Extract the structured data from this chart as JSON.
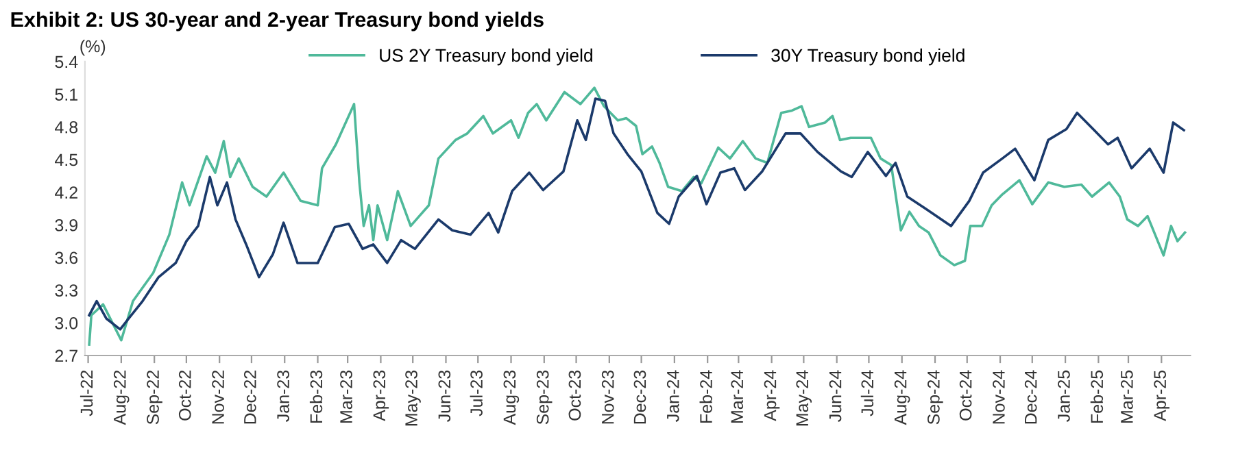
{
  "chart_data": {
    "type": "line",
    "title": "Exhibit 2: US 30-year and 2-year Treasury bond yields",
    "ylabel": "(%)",
    "xlim": [
      "2022-06-28",
      "2025-04-28"
    ],
    "ylim": [
      2.7,
      5.4
    ],
    "yticks": [
      2.7,
      {
        "value": 3,
        "label": "3.0"
      },
      3.3,
      3.6,
      3.9,
      4.2,
      4.5,
      4.8,
      5.1,
      5.4
    ],
    "xticks": [
      {
        "value": "2022-07-01",
        "label": "Jul-22"
      },
      {
        "value": "2022-08-01",
        "label": "Aug-22"
      },
      {
        "value": "2022-09-01",
        "label": "Sep-22"
      },
      {
        "value": "2022-10-01",
        "label": "Oct-22"
      },
      {
        "value": "2022-11-01",
        "label": "Nov-22"
      },
      {
        "value": "2022-12-01",
        "label": "Dec-22"
      },
      {
        "value": "2023-01-01",
        "label": "Jan-23"
      },
      {
        "value": "2023-02-01",
        "label": "Feb-23"
      },
      {
        "value": "2023-03-01",
        "label": "Mar-23"
      },
      {
        "value": "2023-04-01",
        "label": "Apr-23"
      },
      {
        "value": "2023-05-01",
        "label": "May-23"
      },
      {
        "value": "2023-06-01",
        "label": "Jun-23"
      },
      {
        "value": "2023-07-01",
        "label": "Jul-23"
      },
      {
        "value": "2023-08-01",
        "label": "Aug-23"
      },
      {
        "value": "2023-09-01",
        "label": "Sep-23"
      },
      {
        "value": "2023-10-01",
        "label": "Oct-23"
      },
      {
        "value": "2023-11-01",
        "label": "Nov-23"
      },
      {
        "value": "2023-12-01",
        "label": "Dec-23"
      },
      {
        "value": "2024-01-01",
        "label": "Jan-24"
      },
      {
        "value": "2024-02-01",
        "label": "Feb-24"
      },
      {
        "value": "2024-03-01",
        "label": "Mar-24"
      },
      {
        "value": "2024-04-01",
        "label": "Apr-24"
      },
      {
        "value": "2024-05-01",
        "label": "May-24"
      },
      {
        "value": "2024-06-01",
        "label": "Jun-24"
      },
      {
        "value": "2024-07-01",
        "label": "Jul-24"
      },
      {
        "value": "2024-08-01",
        "label": "Aug-24"
      },
      {
        "value": "2024-09-01",
        "label": "Sep-24"
      },
      {
        "value": "2024-10-01",
        "label": "Oct-24"
      },
      {
        "value": "2024-11-01",
        "label": "Nov-24"
      },
      {
        "value": "2024-12-01",
        "label": "Dec-24"
      },
      {
        "value": "2025-01-01",
        "label": "Jan-25"
      },
      {
        "value": "2025-02-01",
        "label": "Feb-25"
      },
      {
        "value": "2025-03-01",
        "label": "Mar-25"
      },
      {
        "value": "2025-04-01",
        "label": "Apr-25"
      }
    ],
    "legend": "top",
    "grid": false,
    "series": [
      {
        "name": "US 2Y Treasury bond yield",
        "color": "#4fb99a",
        "x": [
          "2022-07-02",
          "2022-07-04",
          "2022-07-15",
          "2022-08-01",
          "2022-08-12",
          "2022-08-31",
          "2022-09-15",
          "2022-09-27",
          "2022-10-04",
          "2022-10-20",
          "2022-10-28",
          "2022-11-05",
          "2022-11-11",
          "2022-11-19",
          "2022-12-02",
          "2022-12-15",
          "2022-12-31",
          "2023-01-16",
          "2023-02-01",
          "2023-02-05",
          "2023-02-18",
          "2023-03-07",
          "2023-03-12",
          "2023-03-16",
          "2023-03-21",
          "2023-03-25",
          "2023-03-29",
          "2023-04-07",
          "2023-04-17",
          "2023-04-29",
          "2023-05-07",
          "2023-05-16",
          "2023-05-25",
          "2023-06-10",
          "2023-06-21",
          "2023-07-06",
          "2023-07-15",
          "2023-08-01",
          "2023-08-08",
          "2023-08-17",
          "2023-08-25",
          "2023-09-03",
          "2023-09-20",
          "2023-10-05",
          "2023-10-18",
          "2023-10-27",
          "2023-11-09",
          "2023-11-17",
          "2023-11-26",
          "2023-12-02",
          "2023-12-11",
          "2023-12-18",
          "2023-12-26",
          "2024-01-08",
          "2024-01-19",
          "2024-01-26",
          "2024-02-11",
          "2024-02-22",
          "2024-03-05",
          "2024-03-17",
          "2024-03-28",
          "2024-04-10",
          "2024-04-20",
          "2024-04-29",
          "2024-05-06",
          "2024-05-21",
          "2024-05-28",
          "2024-06-04",
          "2024-06-14",
          "2024-07-03",
          "2024-07-12",
          "2024-07-22",
          "2024-07-31",
          "2024-08-08",
          "2024-08-17",
          "2024-08-26",
          "2024-09-06",
          "2024-09-19",
          "2024-09-29",
          "2024-10-04",
          "2024-10-15",
          "2024-10-24",
          "2024-11-03",
          "2024-11-19",
          "2024-12-01",
          "2024-12-16",
          "2024-12-31",
          "2025-01-16",
          "2025-01-26",
          "2025-02-11",
          "2025-02-21",
          "2025-02-28",
          "2025-03-10",
          "2025-03-19",
          "2025-04-03",
          "2025-04-10",
          "2025-04-16",
          "2025-04-23"
        ],
        "values": [
          2.8,
          3.07,
          3.17,
          2.84,
          3.2,
          3.46,
          3.81,
          4.29,
          4.08,
          4.53,
          4.38,
          4.67,
          4.34,
          4.51,
          4.25,
          4.16,
          4.38,
          4.12,
          4.08,
          4.42,
          4.64,
          5.01,
          4.29,
          3.89,
          4.08,
          3.76,
          4.08,
          3.76,
          4.21,
          3.89,
          3.98,
          4.08,
          4.51,
          4.68,
          4.74,
          4.9,
          4.74,
          4.86,
          4.7,
          4.93,
          5.01,
          4.86,
          5.12,
          5.01,
          5.16,
          4.99,
          4.86,
          4.88,
          4.81,
          4.55,
          4.62,
          4.47,
          4.25,
          4.21,
          4.34,
          4.28,
          4.61,
          4.51,
          4.67,
          4.51,
          4.47,
          4.93,
          4.95,
          4.99,
          4.8,
          4.84,
          4.9,
          4.68,
          4.7,
          4.7,
          4.51,
          4.45,
          3.85,
          4.02,
          3.89,
          3.83,
          3.62,
          3.53,
          3.57,
          3.89,
          3.89,
          4.08,
          4.18,
          4.31,
          4.09,
          4.29,
          4.25,
          4.27,
          4.16,
          4.29,
          4.16,
          3.95,
          3.89,
          3.98,
          3.62,
          3.89,
          3.75,
          3.83
        ]
      },
      {
        "name": "30Y Treasury bond yield",
        "color": "#1b3a6b",
        "x": [
          "2022-07-02",
          "2022-07-09",
          "2022-07-18",
          "2022-07-31",
          "2022-08-08",
          "2022-08-21",
          "2022-09-05",
          "2022-09-21",
          "2022-10-01",
          "2022-10-12",
          "2022-10-23",
          "2022-10-30",
          "2022-11-08",
          "2022-11-16",
          "2022-11-26",
          "2022-12-08",
          "2022-12-21",
          "2022-12-31",
          "2023-01-13",
          "2023-02-01",
          "2023-02-17",
          "2023-03-02",
          "2023-03-15",
          "2023-03-25",
          "2023-04-07",
          "2023-04-20",
          "2023-05-03",
          "2023-05-25",
          "2023-06-07",
          "2023-06-24",
          "2023-07-11",
          "2023-07-20",
          "2023-08-02",
          "2023-08-18",
          "2023-08-31",
          "2023-09-19",
          "2023-10-02",
          "2023-10-10",
          "2023-10-19",
          "2023-10-28",
          "2023-11-05",
          "2023-11-18",
          "2023-12-01",
          "2023-12-16",
          "2023-12-27",
          "2024-01-05",
          "2024-01-22",
          "2024-01-31",
          "2024-02-13",
          "2024-02-26",
          "2024-03-07",
          "2024-03-23",
          "2024-04-14",
          "2024-04-28",
          "2024-05-14",
          "2024-06-05",
          "2024-06-15",
          "2024-06-30",
          "2024-07-17",
          "2024-07-26",
          "2024-08-06",
          "2024-08-23",
          "2024-09-16",
          "2024-10-03",
          "2024-10-16",
          "2024-11-03",
          "2024-11-15",
          "2024-12-03",
          "2024-12-16",
          "2025-01-02",
          "2025-01-12",
          "2025-01-28",
          "2025-02-10",
          "2025-02-19",
          "2025-03-04",
          "2025-03-21",
          "2025-04-03",
          "2025-04-12",
          "2025-04-22"
        ],
        "values": [
          3.07,
          3.2,
          3.04,
          2.94,
          3.04,
          3.2,
          3.42,
          3.55,
          3.75,
          3.89,
          4.34,
          4.08,
          4.29,
          3.95,
          3.72,
          3.42,
          3.63,
          3.92,
          3.55,
          3.55,
          3.88,
          3.91,
          3.68,
          3.72,
          3.55,
          3.76,
          3.68,
          3.95,
          3.85,
          3.81,
          4.01,
          3.83,
          4.21,
          4.38,
          4.22,
          4.39,
          4.86,
          4.68,
          5.06,
          5.04,
          4.74,
          4.55,
          4.39,
          4.01,
          3.91,
          4.16,
          4.35,
          4.09,
          4.38,
          4.42,
          4.22,
          4.39,
          4.74,
          4.74,
          4.57,
          4.39,
          4.34,
          4.57,
          4.35,
          4.47,
          4.16,
          4.05,
          3.89,
          4.12,
          4.38,
          4.51,
          4.6,
          4.31,
          4.68,
          4.78,
          4.93,
          4.77,
          4.64,
          4.7,
          4.42,
          4.6,
          4.38,
          4.84,
          4.77
        ]
      }
    ]
  }
}
